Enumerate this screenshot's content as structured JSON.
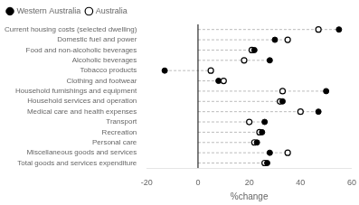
{
  "chart_data": {
    "type": "dot",
    "orientation": "horizontal",
    "categories": [
      "Current housing costs (selected dwelling)",
      "Domestic fuel and power",
      "Food and non-alcoholic beverages",
      "Alcoholic beverages",
      "Tobacco products",
      "Clothing and footwear",
      "Household furnishings and equipment",
      "Household services and operation",
      "Medical care and health expenses",
      "Transport",
      "Recreation",
      "Personal care",
      "Miscellaneous goods and services",
      "Total goods and services expenditure"
    ],
    "series": [
      {
        "name": "Western Australia",
        "color": "#000000",
        "marker": "circle",
        "values": [
          55,
          30,
          22,
          28,
          -13,
          8,
          50,
          33,
          47,
          26,
          25,
          23,
          28,
          27
        ]
      },
      {
        "name": "Australia",
        "color": "#000000",
        "marker": "open_circle",
        "values": [
          47,
          35,
          21,
          18,
          5,
          10,
          33,
          32,
          40,
          20,
          24,
          22,
          35,
          26
        ]
      }
    ],
    "x_label": "%change",
    "xlim": [
      -20,
      60
    ],
    "xticks": [
      -20,
      0,
      20,
      40,
      60
    ],
    "grid": false,
    "legend": "upper left"
  }
}
